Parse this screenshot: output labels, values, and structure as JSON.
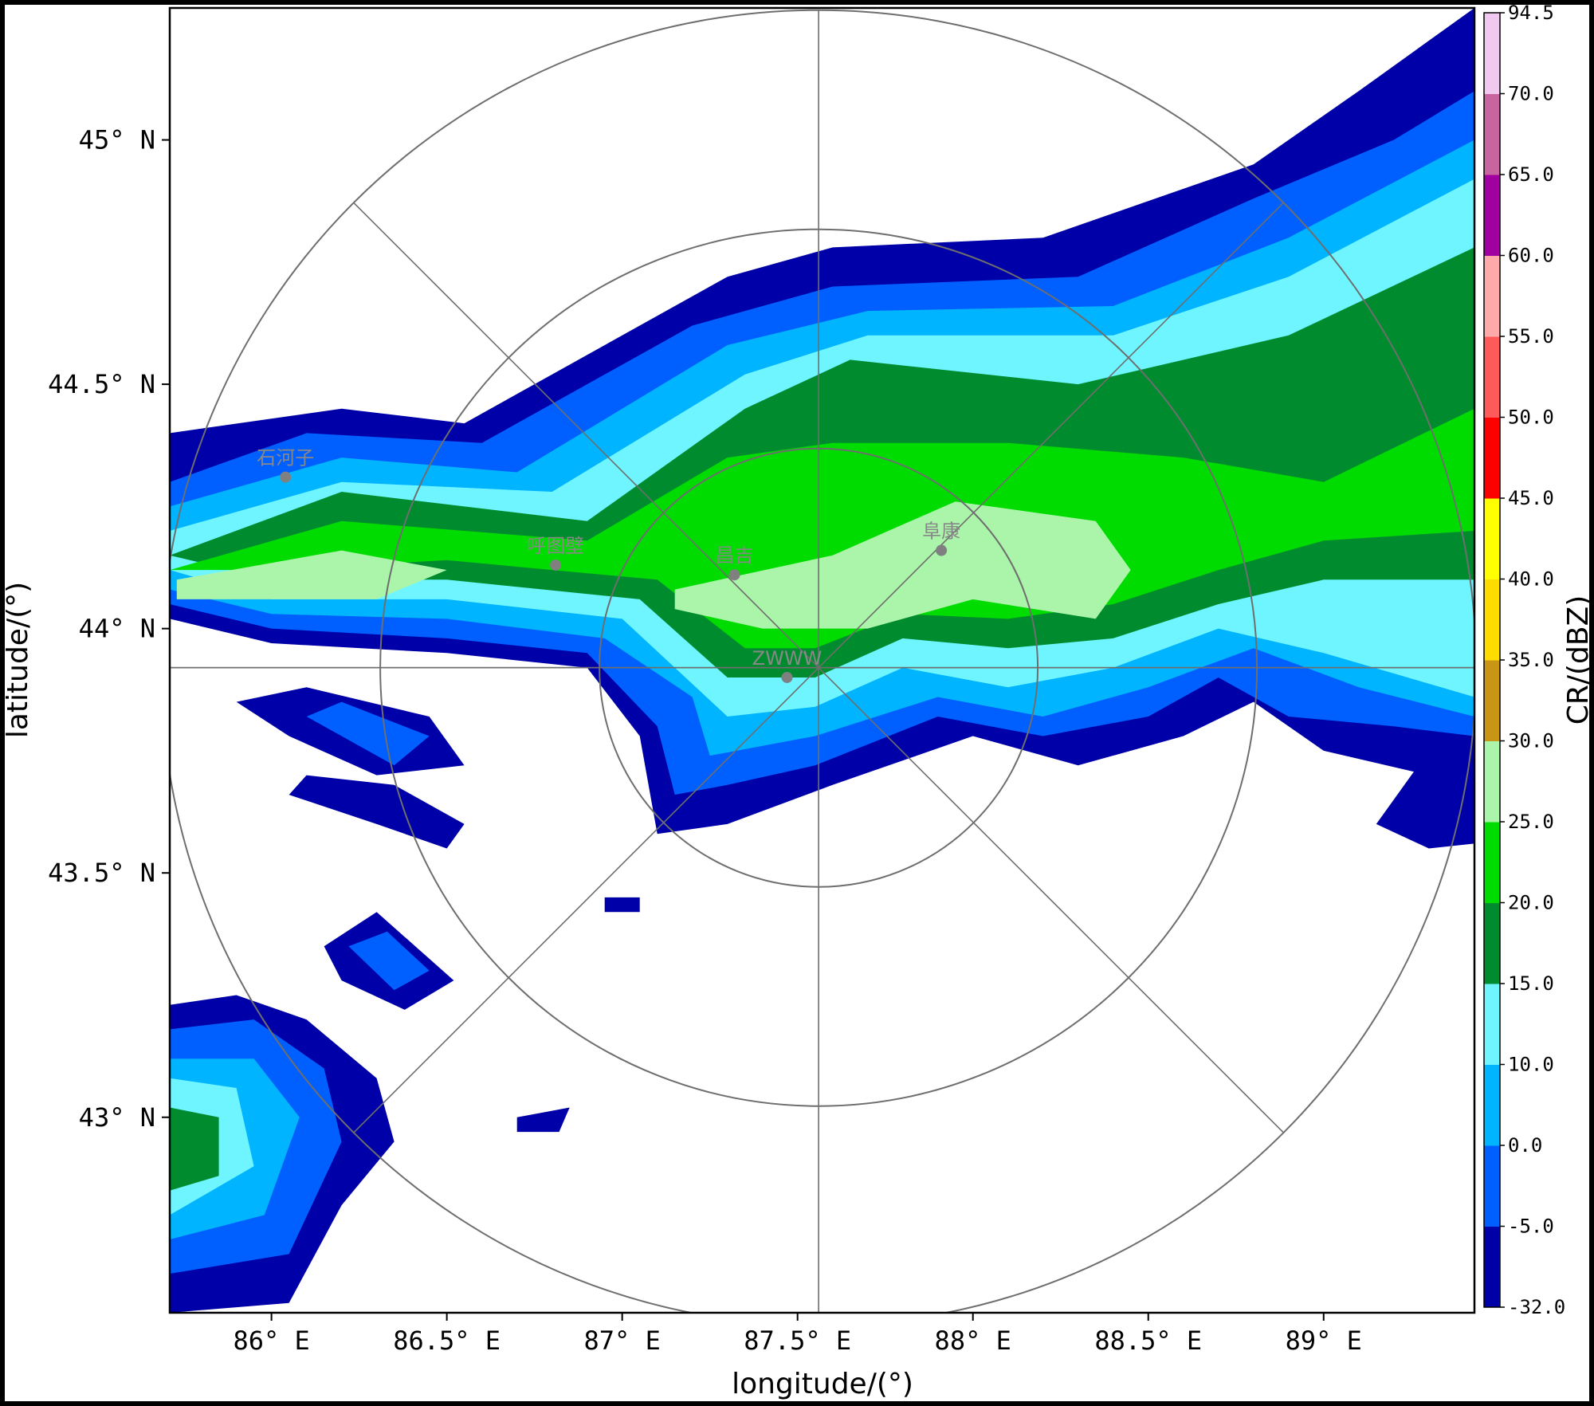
{
  "chart_data": {
    "type": "heatmap",
    "title": "",
    "xlabel": "longitude/(°)",
    "ylabel": "latitude/(°)",
    "x_ticks": [
      {
        "value": 86.0,
        "label": "86° E"
      },
      {
        "value": 86.5,
        "label": "86.5° E"
      },
      {
        "value": 87.0,
        "label": "87° E"
      },
      {
        "value": 87.5,
        "label": "87.5° E"
      },
      {
        "value": 88.0,
        "label": "88° E"
      },
      {
        "value": 88.5,
        "label": "88.5° E"
      },
      {
        "value": 89.0,
        "label": "89° E"
      }
    ],
    "y_ticks": [
      {
        "value": 45.0,
        "label": "45° N"
      },
      {
        "value": 44.5,
        "label": "44.5° N"
      },
      {
        "value": 44.0,
        "label": "44° N"
      },
      {
        "value": 43.5,
        "label": "43.5° N"
      },
      {
        "value": 43.0,
        "label": "43° N"
      }
    ],
    "xlim": [
      85.71,
      89.43
    ],
    "ylim": [
      42.6,
      45.27
    ],
    "grid": "polar range rings and azimuth spokes centered on radar",
    "radar_center": {
      "lon": 87.56,
      "lat": 43.92
    },
    "colorbar": {
      "label": "CR/(dBZ)",
      "levels": [
        -32.0,
        -5.0,
        0.0,
        10.0,
        15.0,
        20.0,
        25.0,
        30.0,
        35.0,
        40.0,
        45.0,
        50.0,
        55.0,
        60.0,
        65.0,
        70.0,
        94.5
      ],
      "level_labels": [
        "-32.0",
        "-5.0",
        "0.0",
        "10.0",
        "15.0",
        "20.0",
        "25.0",
        "30.0",
        "35.0",
        "40.0",
        "45.0",
        "50.0",
        "55.0",
        "60.0",
        "65.0",
        "70.0",
        "94.5"
      ],
      "colors": [
        "#0000A8",
        "#0060FF",
        "#00B4FF",
        "#6EF5FF",
        "#008C2E",
        "#00DC00",
        "#AAF5AA",
        "#C89614",
        "#FFDC00",
        "#FFFF00",
        "#FF0000",
        "#FF5A5A",
        "#FFAAAA",
        "#A000A0",
        "#C864A0",
        "#F0C8F0"
      ]
    },
    "stations": [
      {
        "name": "石河子",
        "lon": 86.04,
        "lat": 44.31
      },
      {
        "name": "呼图壁",
        "lon": 86.81,
        "lat": 44.13
      },
      {
        "name": "昌吉",
        "lon": 87.32,
        "lat": 44.11
      },
      {
        "name": "阜康",
        "lon": 87.91,
        "lat": 44.16
      },
      {
        "name": "ZWWW",
        "lon": 87.47,
        "lat": 43.9
      }
    ],
    "reflectivity_regions": [
      {
        "band": 0,
        "polygon": [
          [
            85.71,
            44.4
          ],
          [
            86.2,
            44.45
          ],
          [
            86.55,
            44.42
          ],
          [
            87.3,
            44.72
          ],
          [
            87.6,
            44.78
          ],
          [
            88.2,
            44.8
          ],
          [
            88.8,
            44.95
          ],
          [
            89.1,
            45.1
          ],
          [
            89.43,
            45.27
          ],
          [
            89.43,
            43.7
          ],
          [
            89.3,
            43.7
          ],
          [
            89.0,
            43.75
          ],
          [
            88.8,
            43.85
          ],
          [
            88.6,
            43.78
          ],
          [
            88.3,
            43.72
          ],
          [
            88.0,
            43.78
          ],
          [
            87.6,
            43.68
          ],
          [
            87.3,
            43.6
          ],
          [
            87.1,
            43.58
          ],
          [
            87.05,
            43.78
          ],
          [
            86.9,
            43.92
          ],
          [
            86.5,
            43.95
          ],
          [
            86.0,
            43.97
          ],
          [
            85.71,
            44.02
          ]
        ]
      },
      {
        "band": 0,
        "polygon": [
          [
            85.71,
            42.65
          ],
          [
            85.71,
            43.23
          ],
          [
            85.9,
            43.25
          ],
          [
            86.1,
            43.2
          ],
          [
            86.3,
            43.08
          ],
          [
            86.35,
            42.95
          ],
          [
            86.2,
            42.82
          ],
          [
            86.05,
            42.62
          ],
          [
            85.71,
            42.6
          ]
        ]
      },
      {
        "band": 0,
        "polygon": [
          [
            85.9,
            43.85
          ],
          [
            86.05,
            43.78
          ],
          [
            86.3,
            43.7
          ],
          [
            86.55,
            43.72
          ],
          [
            86.45,
            43.82
          ],
          [
            86.1,
            43.88
          ]
        ]
      },
      {
        "band": 0,
        "polygon": [
          [
            86.15,
            43.35
          ],
          [
            86.3,
            43.42
          ],
          [
            86.52,
            43.28
          ],
          [
            86.38,
            43.22
          ],
          [
            86.2,
            43.28
          ]
        ]
      },
      {
        "band": 0,
        "polygon": [
          [
            86.05,
            43.66
          ],
          [
            86.3,
            43.6
          ],
          [
            86.5,
            43.55
          ],
          [
            86.55,
            43.6
          ],
          [
            86.35,
            43.68
          ],
          [
            86.1,
            43.7
          ]
        ]
      },
      {
        "band": 0,
        "polygon": [
          [
            86.7,
            43.0
          ],
          [
            86.85,
            43.02
          ],
          [
            86.82,
            42.97
          ],
          [
            86.7,
            42.97
          ]
        ]
      },
      {
        "band": 0,
        "polygon": [
          [
            86.95,
            43.45
          ],
          [
            87.05,
            43.45
          ],
          [
            87.05,
            43.42
          ],
          [
            86.95,
            43.42
          ]
        ]
      },
      {
        "band": 0,
        "polygon": [
          [
            89.15,
            43.6
          ],
          [
            89.3,
            43.75
          ],
          [
            89.43,
            43.78
          ],
          [
            89.43,
            43.56
          ],
          [
            89.3,
            43.55
          ]
        ]
      },
      {
        "band": 1,
        "polygon": [
          [
            85.71,
            44.3
          ],
          [
            86.1,
            44.4
          ],
          [
            86.6,
            44.38
          ],
          [
            87.2,
            44.62
          ],
          [
            87.6,
            44.7
          ],
          [
            88.3,
            44.72
          ],
          [
            88.8,
            44.88
          ],
          [
            89.2,
            45.0
          ],
          [
            89.43,
            45.1
          ],
          [
            89.43,
            43.78
          ],
          [
            89.2,
            43.8
          ],
          [
            88.9,
            43.82
          ],
          [
            88.7,
            43.9
          ],
          [
            88.5,
            43.82
          ],
          [
            88.2,
            43.78
          ],
          [
            87.9,
            43.82
          ],
          [
            87.55,
            43.72
          ],
          [
            87.3,
            43.68
          ],
          [
            87.15,
            43.66
          ],
          [
            87.1,
            43.8
          ],
          [
            86.9,
            43.95
          ],
          [
            86.5,
            43.98
          ],
          [
            86.0,
            44.0
          ],
          [
            85.71,
            44.05
          ]
        ]
      },
      {
        "band": 1,
        "polygon": [
          [
            85.71,
            42.68
          ],
          [
            85.71,
            43.18
          ],
          [
            85.95,
            43.2
          ],
          [
            86.15,
            43.1
          ],
          [
            86.2,
            42.95
          ],
          [
            86.05,
            42.72
          ]
        ]
      },
      {
        "band": 1,
        "polygon": [
          [
            86.1,
            43.82
          ],
          [
            86.35,
            43.72
          ],
          [
            86.45,
            43.78
          ],
          [
            86.2,
            43.85
          ]
        ]
      },
      {
        "band": 1,
        "polygon": [
          [
            86.22,
            43.35
          ],
          [
            86.33,
            43.38
          ],
          [
            86.45,
            43.3
          ],
          [
            86.35,
            43.26
          ]
        ]
      },
      {
        "band": 2,
        "polygon": [
          [
            85.71,
            44.25
          ],
          [
            86.2,
            44.35
          ],
          [
            86.7,
            44.32
          ],
          [
            87.3,
            44.58
          ],
          [
            87.7,
            44.65
          ],
          [
            88.4,
            44.66
          ],
          [
            88.9,
            44.8
          ],
          [
            89.43,
            45.0
          ],
          [
            89.43,
            43.82
          ],
          [
            89.1,
            43.88
          ],
          [
            88.8,
            43.96
          ],
          [
            88.5,
            43.88
          ],
          [
            88.2,
            43.82
          ],
          [
            87.9,
            43.86
          ],
          [
            87.55,
            43.78
          ],
          [
            87.25,
            43.74
          ],
          [
            87.2,
            43.86
          ],
          [
            86.95,
            43.98
          ],
          [
            86.5,
            44.02
          ],
          [
            86.0,
            44.03
          ],
          [
            85.71,
            44.08
          ]
        ]
      },
      {
        "band": 2,
        "polygon": [
          [
            85.71,
            42.75
          ],
          [
            85.71,
            43.12
          ],
          [
            85.95,
            43.12
          ],
          [
            86.08,
            43.0
          ],
          [
            85.98,
            42.8
          ]
        ]
      },
      {
        "band": 3,
        "polygon": [
          [
            85.71,
            44.2
          ],
          [
            86.2,
            44.3
          ],
          [
            86.8,
            44.28
          ],
          [
            87.35,
            44.52
          ],
          [
            87.7,
            44.6
          ],
          [
            88.4,
            44.6
          ],
          [
            88.9,
            44.72
          ],
          [
            89.43,
            44.92
          ],
          [
            89.43,
            43.86
          ],
          [
            89.0,
            43.95
          ],
          [
            88.7,
            44.0
          ],
          [
            88.4,
            43.92
          ],
          [
            88.1,
            43.88
          ],
          [
            87.8,
            43.92
          ],
          [
            87.55,
            43.84
          ],
          [
            87.3,
            43.82
          ],
          [
            87.0,
            44.02
          ],
          [
            86.5,
            44.06
          ],
          [
            86.0,
            44.06
          ],
          [
            85.71,
            44.12
          ]
        ]
      },
      {
        "band": 3,
        "polygon": [
          [
            85.71,
            42.8
          ],
          [
            85.71,
            43.08
          ],
          [
            85.9,
            43.06
          ],
          [
            85.95,
            42.9
          ]
        ]
      },
      {
        "band": 4,
        "polygon": [
          [
            85.71,
            44.15
          ],
          [
            86.2,
            44.28
          ],
          [
            86.9,
            44.22
          ],
          [
            87.35,
            44.45
          ],
          [
            87.65,
            44.55
          ],
          [
            88.3,
            44.5
          ],
          [
            88.9,
            44.6
          ],
          [
            89.43,
            44.78
          ],
          [
            89.43,
            44.1
          ],
          [
            89.0,
            44.1
          ],
          [
            88.7,
            44.05
          ],
          [
            88.4,
            43.98
          ],
          [
            88.1,
            43.96
          ],
          [
            87.8,
            43.98
          ],
          [
            87.55,
            43.9
          ],
          [
            87.3,
            43.9
          ],
          [
            87.05,
            44.06
          ],
          [
            86.5,
            44.1
          ],
          [
            86.0,
            44.1
          ],
          [
            85.71,
            44.15
          ]
        ]
      },
      {
        "band": 4,
        "polygon": [
          [
            85.71,
            42.85
          ],
          [
            85.71,
            43.02
          ],
          [
            85.85,
            43.0
          ],
          [
            85.85,
            42.88
          ]
        ]
      },
      {
        "band": 5,
        "polygon": [
          [
            85.71,
            44.12
          ],
          [
            86.2,
            44.22
          ],
          [
            86.9,
            44.18
          ],
          [
            87.3,
            44.35
          ],
          [
            87.6,
            44.38
          ],
          [
            88.1,
            44.38
          ],
          [
            88.6,
            44.35
          ],
          [
            89.0,
            44.3
          ],
          [
            89.43,
            44.45
          ],
          [
            89.43,
            44.2
          ],
          [
            89.0,
            44.18
          ],
          [
            88.7,
            44.12
          ],
          [
            88.4,
            44.05
          ],
          [
            88.1,
            44.02
          ],
          [
            87.8,
            44.03
          ],
          [
            87.55,
            43.96
          ],
          [
            87.35,
            43.96
          ],
          [
            87.1,
            44.1
          ],
          [
            86.5,
            44.14
          ],
          [
            86.0,
            44.12
          ],
          [
            85.71,
            44.12
          ]
        ]
      },
      {
        "band": 6,
        "polygon": [
          [
            85.73,
            44.1
          ],
          [
            86.2,
            44.16
          ],
          [
            86.5,
            44.12
          ],
          [
            86.3,
            44.06
          ],
          [
            85.73,
            44.06
          ]
        ]
      },
      {
        "band": 6,
        "polygon": [
          [
            87.15,
            44.08
          ],
          [
            87.6,
            44.15
          ],
          [
            87.95,
            44.26
          ],
          [
            88.35,
            44.22
          ],
          [
            88.45,
            44.12
          ],
          [
            88.35,
            44.02
          ],
          [
            88.0,
            44.06
          ],
          [
            87.7,
            44.0
          ],
          [
            87.4,
            44.0
          ],
          [
            87.15,
            44.04
          ]
        ]
      }
    ]
  }
}
